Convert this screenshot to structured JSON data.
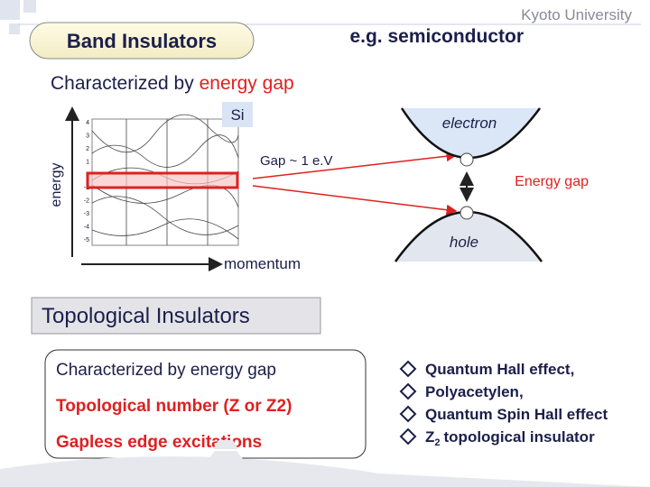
{
  "header": {
    "institution": "Kyoto University",
    "title": "Band Insulators",
    "example": "e.g.  semiconductor"
  },
  "band": {
    "subtitle_prefix": "Characterized by",
    "subtitle_highlight": "energy gap"
  },
  "figure": {
    "material": "Si",
    "y_axis": "energy",
    "x_axis": "momentum",
    "gap": "Gap ~ 1 e.V",
    "y_ticks": [
      "4",
      "3",
      "2",
      "1",
      "0",
      "-1",
      "-2",
      "-3",
      "-4",
      "-5"
    ]
  },
  "diagram": {
    "electron": "electron",
    "gap": "Energy gap",
    "hole": "hole"
  },
  "topological": {
    "title": "Topological Insulators",
    "box": [
      "Characterized by energy gap",
      "Topological number (Z or Z2)",
      "Gapless edge excitations"
    ],
    "examples": [
      "Quantum Hall effect,",
      "Polyacetylen,",
      "Quantum Spin Hall effect"
    ],
    "last_example": {
      "base": "Z",
      "sub": "2",
      "rest": "topological insulator"
    }
  }
}
